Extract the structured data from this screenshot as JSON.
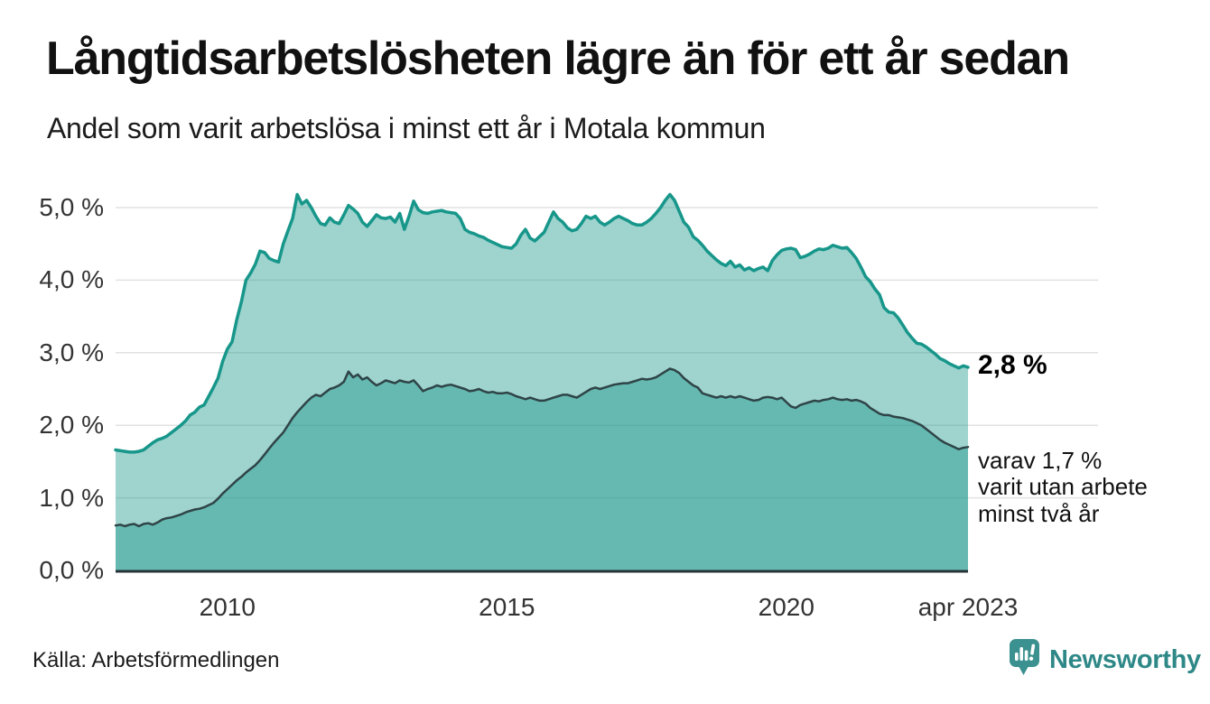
{
  "header": {
    "title": "Långtidsarbetslösheten lägre än för ett år sedan",
    "subtitle": "Andel som varit arbetslösa i minst ett år i Motala kommun"
  },
  "annotations": {
    "latest_value": "2,8 %",
    "secondary_line1": "varav 1,7 %",
    "secondary_line2": "varit utan arbete",
    "secondary_line3": "minst två år"
  },
  "footer": {
    "source": "Källa: Arbetsförmedlingen"
  },
  "branding": {
    "name": "Newsworthy",
    "icon": "newsworthy-speech-bubble-chart-icon"
  },
  "colors": {
    "background": "#ffffff",
    "title_text": "#111111",
    "tick_text": "#333333",
    "grid": "#e2e2e2",
    "axis": "#263238",
    "series1_line": "#17968a",
    "area_fill": "rgba(23,150,138,0.42)",
    "series2_line": "#2f4447",
    "brand": "#2e8887"
  },
  "chart_data": {
    "type": "area",
    "title": "Långtidsarbetslösheten lägre än för ett år sedan",
    "subtitle": "Andel som varit arbetslösa i minst ett år i Motala kommun",
    "frequency": "monthly",
    "x_start": "2008-01",
    "x_end": "2023-04",
    "ylim": [
      0,
      5.45
    ],
    "grid": true,
    "legend_position": "none",
    "y_ticks": [
      {
        "value": 5,
        "label": "5,0 %"
      },
      {
        "value": 4,
        "label": "4,0 %"
      },
      {
        "value": 3,
        "label": "3,0 %"
      },
      {
        "value": 2,
        "label": "2,0 %"
      },
      {
        "value": 1,
        "label": "1,0 %"
      },
      {
        "value": 0,
        "label": "0,0 %"
      }
    ],
    "x_ticks": [
      {
        "label": "2010",
        "index": 24
      },
      {
        "label": "2015",
        "index": 84
      },
      {
        "label": "2020",
        "index": 144
      },
      {
        "label": "apr 2023",
        "index": 183
      }
    ],
    "series": [
      {
        "name": "Arbetslösa minst ett år",
        "end_label": "2,8 %",
        "color": "#17968a",
        "values": [
          1.66,
          1.65,
          1.64,
          1.63,
          1.63,
          1.64,
          1.66,
          1.71,
          1.76,
          1.8,
          1.82,
          1.85,
          1.9,
          1.95,
          2.0,
          2.06,
          2.14,
          2.18,
          2.25,
          2.28,
          2.4,
          2.52,
          2.65,
          2.88,
          3.05,
          3.15,
          3.45,
          3.7,
          4.0,
          4.1,
          4.22,
          4.4,
          4.38,
          4.3,
          4.27,
          4.25,
          4.5,
          4.68,
          4.85,
          5.18,
          5.05,
          5.1,
          5.0,
          4.88,
          4.78,
          4.76,
          4.86,
          4.8,
          4.78,
          4.9,
          5.03,
          4.98,
          4.92,
          4.8,
          4.74,
          4.82,
          4.9,
          4.86,
          4.85,
          4.87,
          4.8,
          4.92,
          4.7,
          4.88,
          5.09,
          4.97,
          4.93,
          4.92,
          4.94,
          4.95,
          4.96,
          4.94,
          4.93,
          4.92,
          4.85,
          4.7,
          4.66,
          4.64,
          4.61,
          4.59,
          4.55,
          4.52,
          4.49,
          4.46,
          4.45,
          4.44,
          4.5,
          4.62,
          4.7,
          4.58,
          4.54,
          4.6,
          4.66,
          4.8,
          4.94,
          4.85,
          4.8,
          4.72,
          4.68,
          4.7,
          4.78,
          4.88,
          4.85,
          4.88,
          4.8,
          4.76,
          4.8,
          4.85,
          4.88,
          4.85,
          4.82,
          4.78,
          4.76,
          4.76,
          4.8,
          4.85,
          4.92,
          5.0,
          5.1,
          5.18,
          5.1,
          4.95,
          4.8,
          4.73,
          4.6,
          4.55,
          4.48,
          4.4,
          4.34,
          4.28,
          4.23,
          4.2,
          4.26,
          4.18,
          4.21,
          4.14,
          4.17,
          4.13,
          4.16,
          4.18,
          4.13,
          4.27,
          4.35,
          4.41,
          4.43,
          4.44,
          4.42,
          4.31,
          4.33,
          4.36,
          4.4,
          4.43,
          4.42,
          4.44,
          4.48,
          4.46,
          4.44,
          4.45,
          4.38,
          4.3,
          4.18,
          4.05,
          3.98,
          3.88,
          3.8,
          3.62,
          3.56,
          3.55,
          3.48,
          3.38,
          3.28,
          3.2,
          3.13,
          3.12,
          3.08,
          3.03,
          2.98,
          2.92,
          2.89,
          2.85,
          2.82,
          2.79,
          2.82,
          2.8
        ]
      },
      {
        "name": "varav utan arbete minst två år",
        "end_label": "1,7 %",
        "color": "#2f4447",
        "values": [
          0.62,
          0.63,
          0.61,
          0.63,
          0.64,
          0.61,
          0.64,
          0.65,
          0.63,
          0.66,
          0.7,
          0.72,
          0.73,
          0.75,
          0.77,
          0.8,
          0.82,
          0.84,
          0.85,
          0.87,
          0.9,
          0.93,
          0.99,
          1.06,
          1.12,
          1.18,
          1.24,
          1.29,
          1.35,
          1.4,
          1.45,
          1.52,
          1.6,
          1.68,
          1.76,
          1.83,
          1.9,
          2.0,
          2.1,
          2.18,
          2.25,
          2.32,
          2.38,
          2.42,
          2.4,
          2.45,
          2.5,
          2.52,
          2.55,
          2.6,
          2.74,
          2.66,
          2.7,
          2.63,
          2.66,
          2.6,
          2.55,
          2.58,
          2.62,
          2.6,
          2.58,
          2.62,
          2.6,
          2.59,
          2.62,
          2.55,
          2.47,
          2.5,
          2.52,
          2.55,
          2.53,
          2.55,
          2.56,
          2.54,
          2.52,
          2.5,
          2.47,
          2.48,
          2.5,
          2.47,
          2.45,
          2.46,
          2.44,
          2.44,
          2.45,
          2.43,
          2.4,
          2.38,
          2.36,
          2.38,
          2.36,
          2.34,
          2.34,
          2.36,
          2.38,
          2.4,
          2.42,
          2.42,
          2.4,
          2.38,
          2.42,
          2.46,
          2.5,
          2.52,
          2.5,
          2.52,
          2.54,
          2.56,
          2.57,
          2.58,
          2.58,
          2.6,
          2.62,
          2.64,
          2.63,
          2.64,
          2.66,
          2.7,
          2.74,
          2.78,
          2.76,
          2.72,
          2.65,
          2.6,
          2.55,
          2.52,
          2.44,
          2.42,
          2.4,
          2.38,
          2.4,
          2.38,
          2.4,
          2.38,
          2.4,
          2.38,
          2.36,
          2.34,
          2.35,
          2.38,
          2.39,
          2.38,
          2.36,
          2.38,
          2.32,
          2.26,
          2.24,
          2.28,
          2.3,
          2.32,
          2.34,
          2.33,
          2.35,
          2.36,
          2.38,
          2.36,
          2.35,
          2.36,
          2.34,
          2.35,
          2.33,
          2.3,
          2.24,
          2.2,
          2.16,
          2.14,
          2.14,
          2.12,
          2.11,
          2.1,
          2.08,
          2.06,
          2.03,
          2.0,
          1.95,
          1.9,
          1.85,
          1.8,
          1.76,
          1.73,
          1.7,
          1.67,
          1.69,
          1.7
        ]
      }
    ]
  }
}
